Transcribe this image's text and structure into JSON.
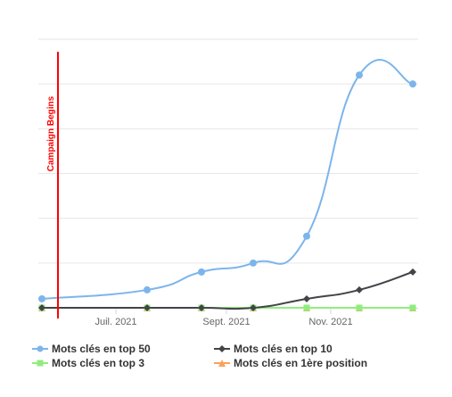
{
  "chart_data": {
    "type": "line",
    "x_ticks": [
      "Juil. 2021",
      "Sept. 2021",
      "Nov. 2021"
    ],
    "annotation": "Campaign Begins",
    "grid": true,
    "legend_position": "bottom",
    "ylim": [
      0,
      300
    ],
    "series": [
      {
        "name": "Mots clés en top 50",
        "color": "#7cb5ec",
        "marker": "circle",
        "values": [
          10,
          20,
          40,
          50,
          80,
          260,
          250
        ]
      },
      {
        "name": "Mots clés en top 10",
        "color": "#434348",
        "marker": "diamond",
        "values": [
          0,
          0,
          0,
          0,
          10,
          20,
          40
        ]
      },
      {
        "name": "Mots clés en top 3",
        "color": "#90ed7d",
        "marker": "square",
        "values": [
          0,
          0,
          0,
          0,
          0,
          0,
          0
        ]
      },
      {
        "name": "Mots clés en 1ère position",
        "color": "#f7a35c",
        "marker": "triangle",
        "values": [
          0,
          0,
          0,
          0,
          0,
          0,
          0
        ]
      }
    ],
    "annotation_color": "#ff0000"
  }
}
